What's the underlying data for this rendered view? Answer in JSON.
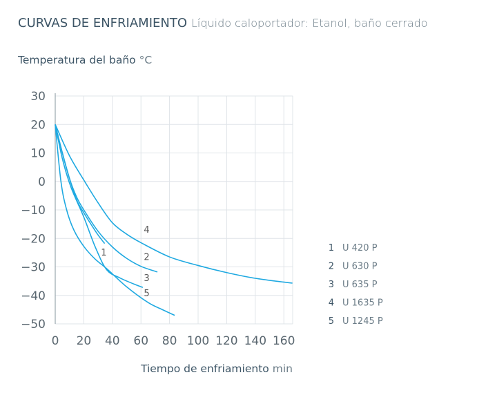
{
  "title": "CURVAS DE ENFRIAMIENTO",
  "subtitle": "Líquido caloportador: Etanol, baño cerrado",
  "chart_data": {
    "type": "line",
    "title": "CURVAS DE ENFRIAMIENTO",
    "ylabel": "Temperatura del baño",
    "ylabel_unit": "°C",
    "xlabel": "Tiempo de enfriamiento",
    "xlabel_unit": "min",
    "xlim": [
      0,
      167
    ],
    "ylim": [
      -50,
      30
    ],
    "xticks": [
      "0",
      "20",
      "40",
      "60",
      "80",
      "100",
      "120",
      "140",
      "160"
    ],
    "yticks": [
      "30",
      "20",
      "10",
      "0",
      "−10",
      "−20",
      "−30",
      "−40",
      "−50"
    ],
    "grid": true,
    "legend_position": "right",
    "color": "#1fa9e1",
    "series": [
      {
        "id": "1",
        "name": "U 420 P",
        "points": [
          [
            0,
            20
          ],
          [
            5,
            10
          ],
          [
            10,
            1
          ],
          [
            15,
            -6.5
          ],
          [
            20,
            -11
          ],
          [
            25,
            -15
          ],
          [
            30,
            -18.8
          ],
          [
            34.6,
            -21.8
          ]
        ]
      },
      {
        "id": "2",
        "name": "U 630 P",
        "points": [
          [
            0,
            20
          ],
          [
            5,
            10
          ],
          [
            10,
            1
          ],
          [
            15,
            -5.5
          ],
          [
            20,
            -10
          ],
          [
            30,
            -17.5
          ],
          [
            40,
            -23
          ],
          [
            50,
            -27
          ],
          [
            60,
            -29.8
          ],
          [
            71.5,
            -31.8
          ]
        ]
      },
      {
        "id": "3",
        "name": "U 635 P",
        "points": [
          [
            0,
            20
          ],
          [
            5,
            8
          ],
          [
            11,
            -2
          ],
          [
            20,
            -12.5
          ],
          [
            28,
            -23
          ],
          [
            36,
            -31
          ],
          [
            45,
            -33.8
          ],
          [
            55,
            -36
          ],
          [
            61.3,
            -37.2
          ]
        ]
      },
      {
        "id": "4",
        "name": "U 1635 P",
        "points": [
          [
            0,
            20
          ],
          [
            10,
            9
          ],
          [
            20,
            0.5
          ],
          [
            30,
            -7.5
          ],
          [
            40,
            -14.5
          ],
          [
            50,
            -18.5
          ],
          [
            60,
            -21.5
          ],
          [
            80,
            -26.5
          ],
          [
            100,
            -29.5
          ],
          [
            120,
            -32
          ],
          [
            140,
            -34
          ],
          [
            166,
            -35.7
          ]
        ]
      },
      {
        "id": "5",
        "name": "U 1245 P",
        "points": [
          [
            0,
            20
          ],
          [
            4,
            0
          ],
          [
            8,
            -10
          ],
          [
            13,
            -17
          ],
          [
            20,
            -22.8
          ],
          [
            28,
            -27.3
          ],
          [
            36,
            -30.6
          ],
          [
            50,
            -37
          ],
          [
            65,
            -42.5
          ],
          [
            75,
            -45
          ],
          [
            83.6,
            -47
          ]
        ]
      }
    ],
    "curve_labels": [
      {
        "text": "1",
        "x": 34,
        "y": -26
      },
      {
        "text": "2",
        "x": 64,
        "y": -27.6
      },
      {
        "text": "3",
        "x": 64,
        "y": -35
      },
      {
        "text": "4",
        "x": 64,
        "y": -18
      },
      {
        "text": "5",
        "x": 64,
        "y": -40.3
      }
    ]
  }
}
